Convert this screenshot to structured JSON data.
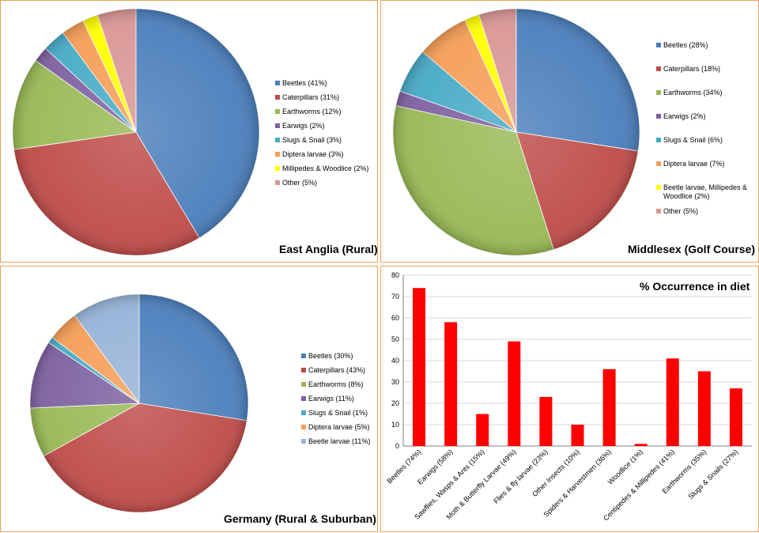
{
  "charts": {
    "east_anglia": {
      "type": "pie",
      "title": "East Anglia (Rural)",
      "slices": [
        {
          "label": "Beetles (41%)",
          "value": 41,
          "color": "#4A7EBB"
        },
        {
          "label": "Caterpillars (31%)",
          "value": 31,
          "color": "#BE4B48"
        },
        {
          "label": "Earthworms (12%)",
          "value": 12,
          "color": "#98B954"
        },
        {
          "label": "Earwigs (2%)",
          "value": 2,
          "color": "#7D60A0"
        },
        {
          "label": "Slugs & Snail (3%)",
          "value": 3,
          "color": "#46AAC5"
        },
        {
          "label": "Diptera larvae (3%)",
          "value": 3,
          "color": "#F59D56"
        },
        {
          "label": "Millipedes & Woodlice (2%)",
          "value": 2,
          "color": "#FFFF00"
        },
        {
          "label": "Other (5%)",
          "value": 5,
          "color": "#D99694"
        }
      ]
    },
    "middlesex": {
      "type": "pie",
      "title": "Middlesex (Golf Course)",
      "slices": [
        {
          "label": "Beetles (28%)",
          "value": 28,
          "color": "#4A7EBB"
        },
        {
          "label": "Caterpillars (18%)",
          "value": 18,
          "color": "#BE4B48"
        },
        {
          "label": "Earthworms (34%)",
          "value": 34,
          "color": "#98B954"
        },
        {
          "label": "Earwigs (2%)",
          "value": 2,
          "color": "#7D60A0"
        },
        {
          "label": "Slugs & Snail (6%)",
          "value": 6,
          "color": "#46AAC5"
        },
        {
          "label": "Diptera larvae (7%)",
          "value": 7,
          "color": "#F59D56"
        },
        {
          "label": "Beetle larvae, Millipedes & Woodlice (2%)",
          "value": 2,
          "color": "#FFFF00"
        },
        {
          "label": "Other (5%)",
          "value": 5,
          "color": "#D99694"
        }
      ]
    },
    "germany": {
      "type": "pie",
      "title": "Germany (Rural & Suburban)",
      "slices": [
        {
          "label": "Beetles (30%)",
          "value": 30,
          "color": "#4A7EBB"
        },
        {
          "label": "Caterpillars (43%)",
          "value": 43,
          "color": "#BE4B48"
        },
        {
          "label": "Earthworms (8%)",
          "value": 8,
          "color": "#98B954"
        },
        {
          "label": "Earwigs (11%)",
          "value": 11,
          "color": "#7D60A0"
        },
        {
          "label": "Slugs & Snail (1%)",
          "value": 1,
          "color": "#46AAC5"
        },
        {
          "label": "Diptera larvae (5%)",
          "value": 5,
          "color": "#F59D56"
        },
        {
          "label": "Beetle larvae (11%)",
          "value": 11,
          "color": "#95B3D7"
        }
      ]
    },
    "occurrence": {
      "type": "bar",
      "title": "% Occurrence in diet",
      "bar_color": "#FF0000",
      "ylim": [
        0,
        80
      ],
      "yticks": [
        0,
        10,
        20,
        30,
        40,
        50,
        60,
        70,
        80
      ],
      "grid": true,
      "categories": [
        "Beetles (74%)",
        "Earwigs (58%)",
        "Sawflies, Wasps & Ants (15%)",
        "Moth & Butterfly Larvae (49%)",
        "Flies & fly larvae (23%)",
        "Other Insects (10%)",
        "Spiders & Harvestmen (36%)",
        "Woodlice (1%)",
        "Centipedes & Millipedes (41%)",
        "Earthworms (35%)",
        "Slugs & Snails (27%)"
      ],
      "values": [
        74,
        58,
        15,
        49,
        23,
        10,
        36,
        1,
        41,
        35,
        27
      ]
    }
  },
  "chart_data": [
    {
      "type": "pie",
      "title": "East Anglia (Rural)",
      "categories": [
        "Beetles",
        "Caterpillars",
        "Earthworms",
        "Earwigs",
        "Slugs & Snail",
        "Diptera larvae",
        "Millipedes & Woodlice",
        "Other"
      ],
      "values": [
        41,
        31,
        12,
        2,
        3,
        3,
        2,
        5
      ],
      "legend": "right"
    },
    {
      "type": "pie",
      "title": "Middlesex (Golf Course)",
      "categories": [
        "Beetles",
        "Caterpillars",
        "Earthworms",
        "Earwigs",
        "Slugs & Snail",
        "Diptera larvae",
        "Beetle larvae, Millipedes & Woodlice",
        "Other"
      ],
      "values": [
        28,
        18,
        34,
        2,
        6,
        7,
        2,
        5
      ],
      "legend": "right"
    },
    {
      "type": "pie",
      "title": "Germany (Rural & Suburban)",
      "categories": [
        "Beetles",
        "Caterpillars",
        "Earthworms",
        "Earwigs",
        "Slugs & Snail",
        "Diptera larvae",
        "Beetle larvae"
      ],
      "values": [
        30,
        43,
        8,
        11,
        1,
        5,
        11
      ],
      "legend": "right"
    },
    {
      "type": "bar",
      "title": "% Occurrence in diet",
      "categories": [
        "Beetles (74%)",
        "Earwigs (58%)",
        "Sawflies, Wasps & Ants (15%)",
        "Moth & Butterfly Larvae (49%)",
        "Flies & fly larvae (23%)",
        "Other Insects (10%)",
        "Spiders & Harvestmen (36%)",
        "Woodlice (1%)",
        "Centipedes & Millipedes (41%)",
        "Earthworms (35%)",
        "Slugs & Snails (27%)"
      ],
      "values": [
        74,
        58,
        15,
        49,
        23,
        10,
        36,
        1,
        41,
        35,
        27
      ],
      "ylim": [
        0,
        80
      ],
      "grid": true
    }
  ]
}
